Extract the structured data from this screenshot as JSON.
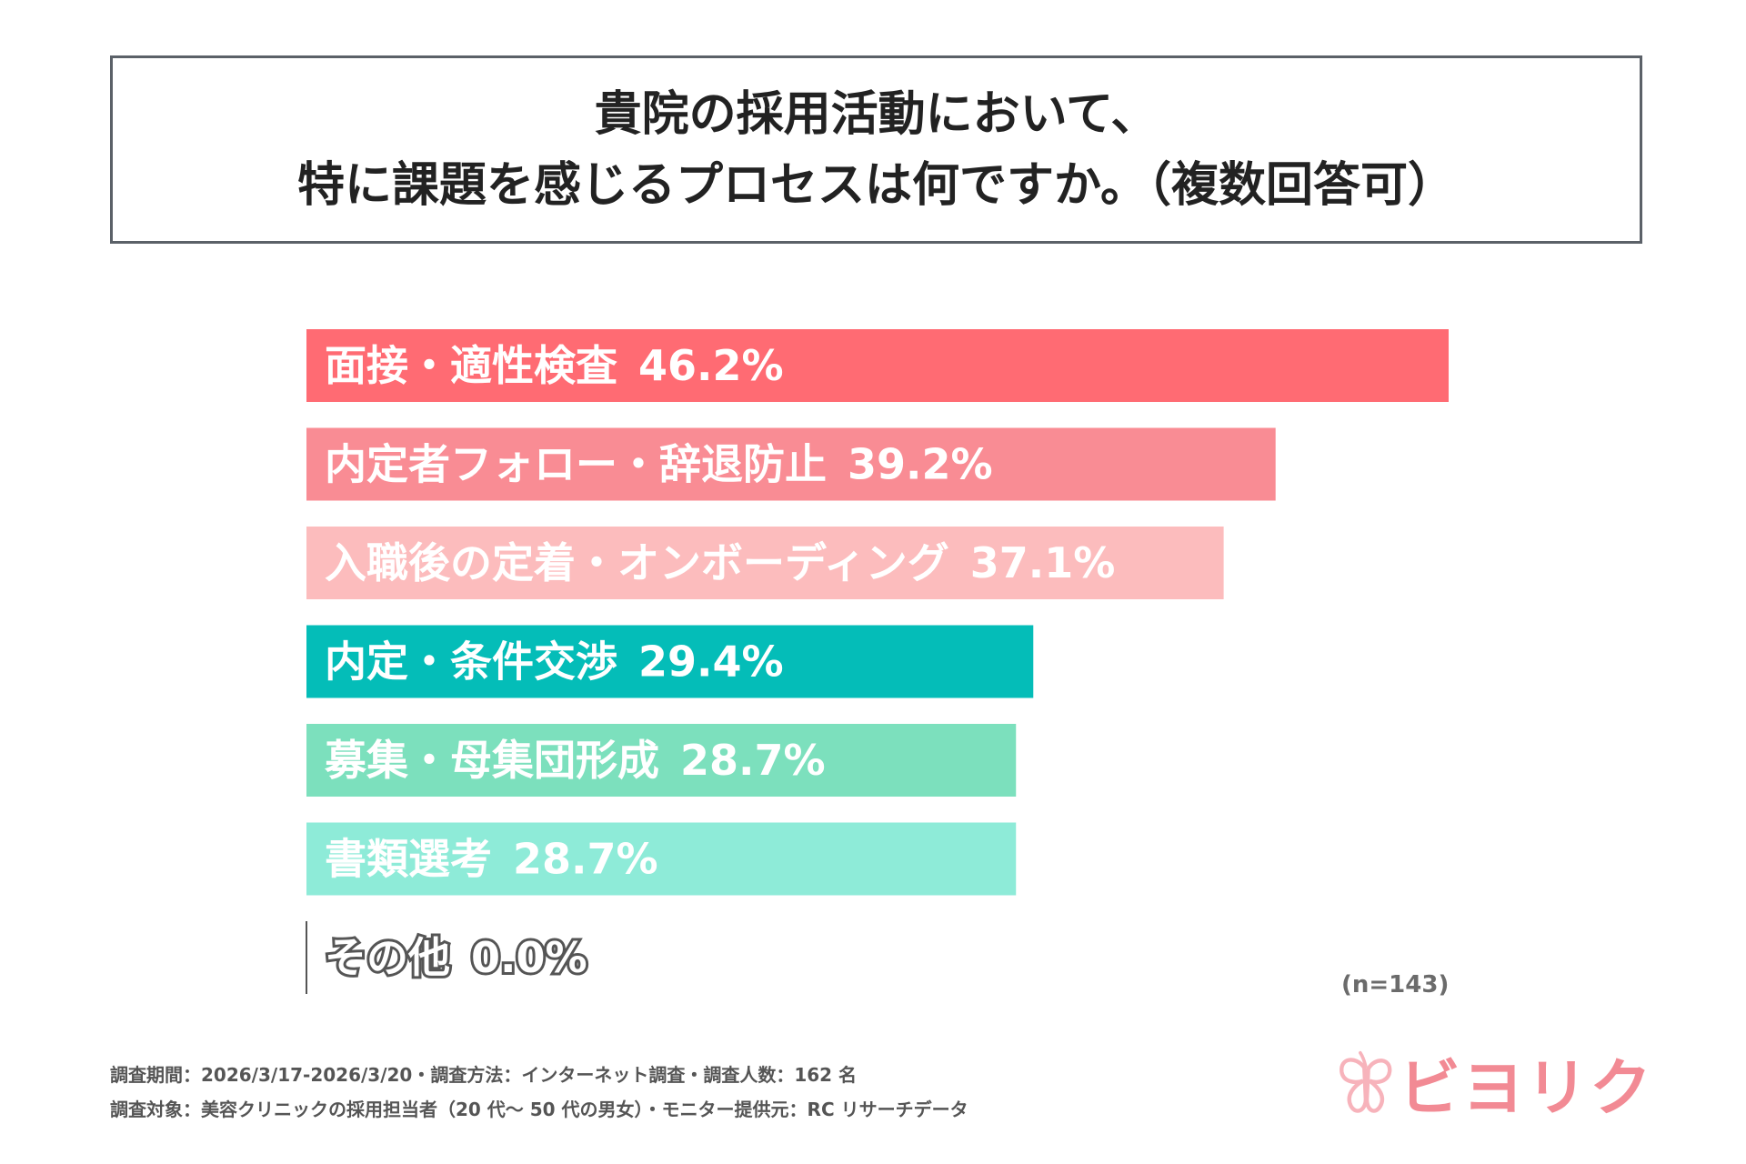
{
  "title": {
    "line1": "貴院の採用活動において、",
    "line2": "特に課題を感じるプロセスは何ですか。（複数回答可）"
  },
  "chart_data": {
    "type": "bar",
    "orientation": "horizontal",
    "categories": [
      "面接・適性検査",
      "内定者フォロー・辞退防止",
      "入職後の定着・オンボーディング",
      "内定・条件交渉",
      "募集・母集団形成",
      "書類選考",
      "その他"
    ],
    "values": [
      46.2,
      39.2,
      37.1,
      29.4,
      28.7,
      28.7,
      0.0
    ],
    "value_labels": [
      "46.2%",
      "39.2%",
      "37.1%",
      "29.4%",
      "28.7%",
      "28.7%",
      "0.0%"
    ],
    "colors": [
      "#ff6b73",
      "#f98c94",
      "#fcbcbd",
      "#04bdb8",
      "#7ce0bd",
      "#8eebd8",
      "#555555"
    ],
    "xlim": [
      0,
      46.2
    ],
    "grid": false,
    "legend": "none",
    "n_label": "(n=143)"
  },
  "footer": {
    "line1": "調査期間：2026/3/17-2026/3/20・調査方法：インターネット調査・調査人数：162 名",
    "line2": "調査対象：美容クリニックの採用担当者（20 代〜 50 代の男女）・モニター提供元：RC リサーチデータ"
  },
  "logo": {
    "text": "ビヨリク",
    "color": "#f28a94",
    "mark_icon": "butterfly-icon"
  }
}
